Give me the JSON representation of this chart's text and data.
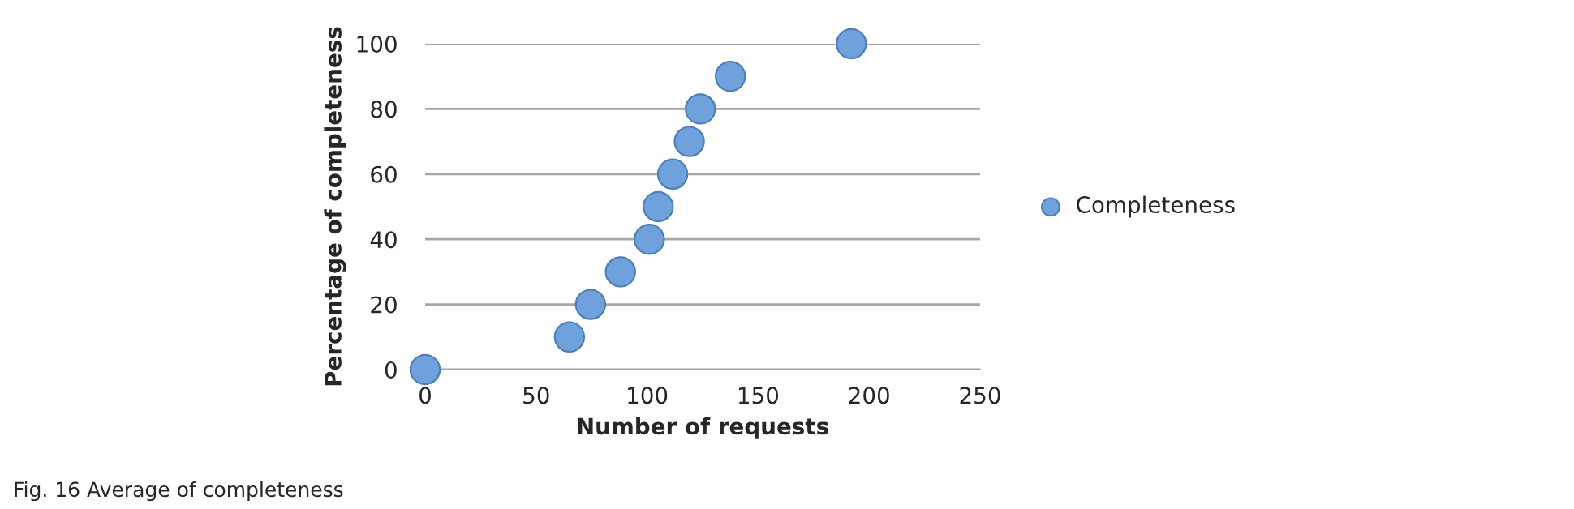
{
  "chart_data": {
    "type": "scatter",
    "xlabel": "Number of requests",
    "ylabel": "Percentage of completeness",
    "series": [
      {
        "name": "Completeness",
        "color": "#6fa2dc",
        "x": [
          0,
          65,
          74.5,
          88,
          101,
          105,
          111.5,
          119,
          124,
          137.5,
          192
        ],
        "values": [
          0,
          10,
          20,
          30,
          40,
          50,
          60,
          70,
          80,
          90,
          100
        ]
      }
    ],
    "xlim": [
      0,
      250
    ],
    "xticks": [
      0,
      50,
      100,
      150,
      200,
      250
    ],
    "ylim": [
      0,
      100
    ],
    "yticks": [
      0,
      20,
      40,
      60,
      80,
      100
    ],
    "grid": "y",
    "legend": "right",
    "marker": "circle",
    "annotations": [
      "Fig. 16 Average of completeness"
    ]
  }
}
